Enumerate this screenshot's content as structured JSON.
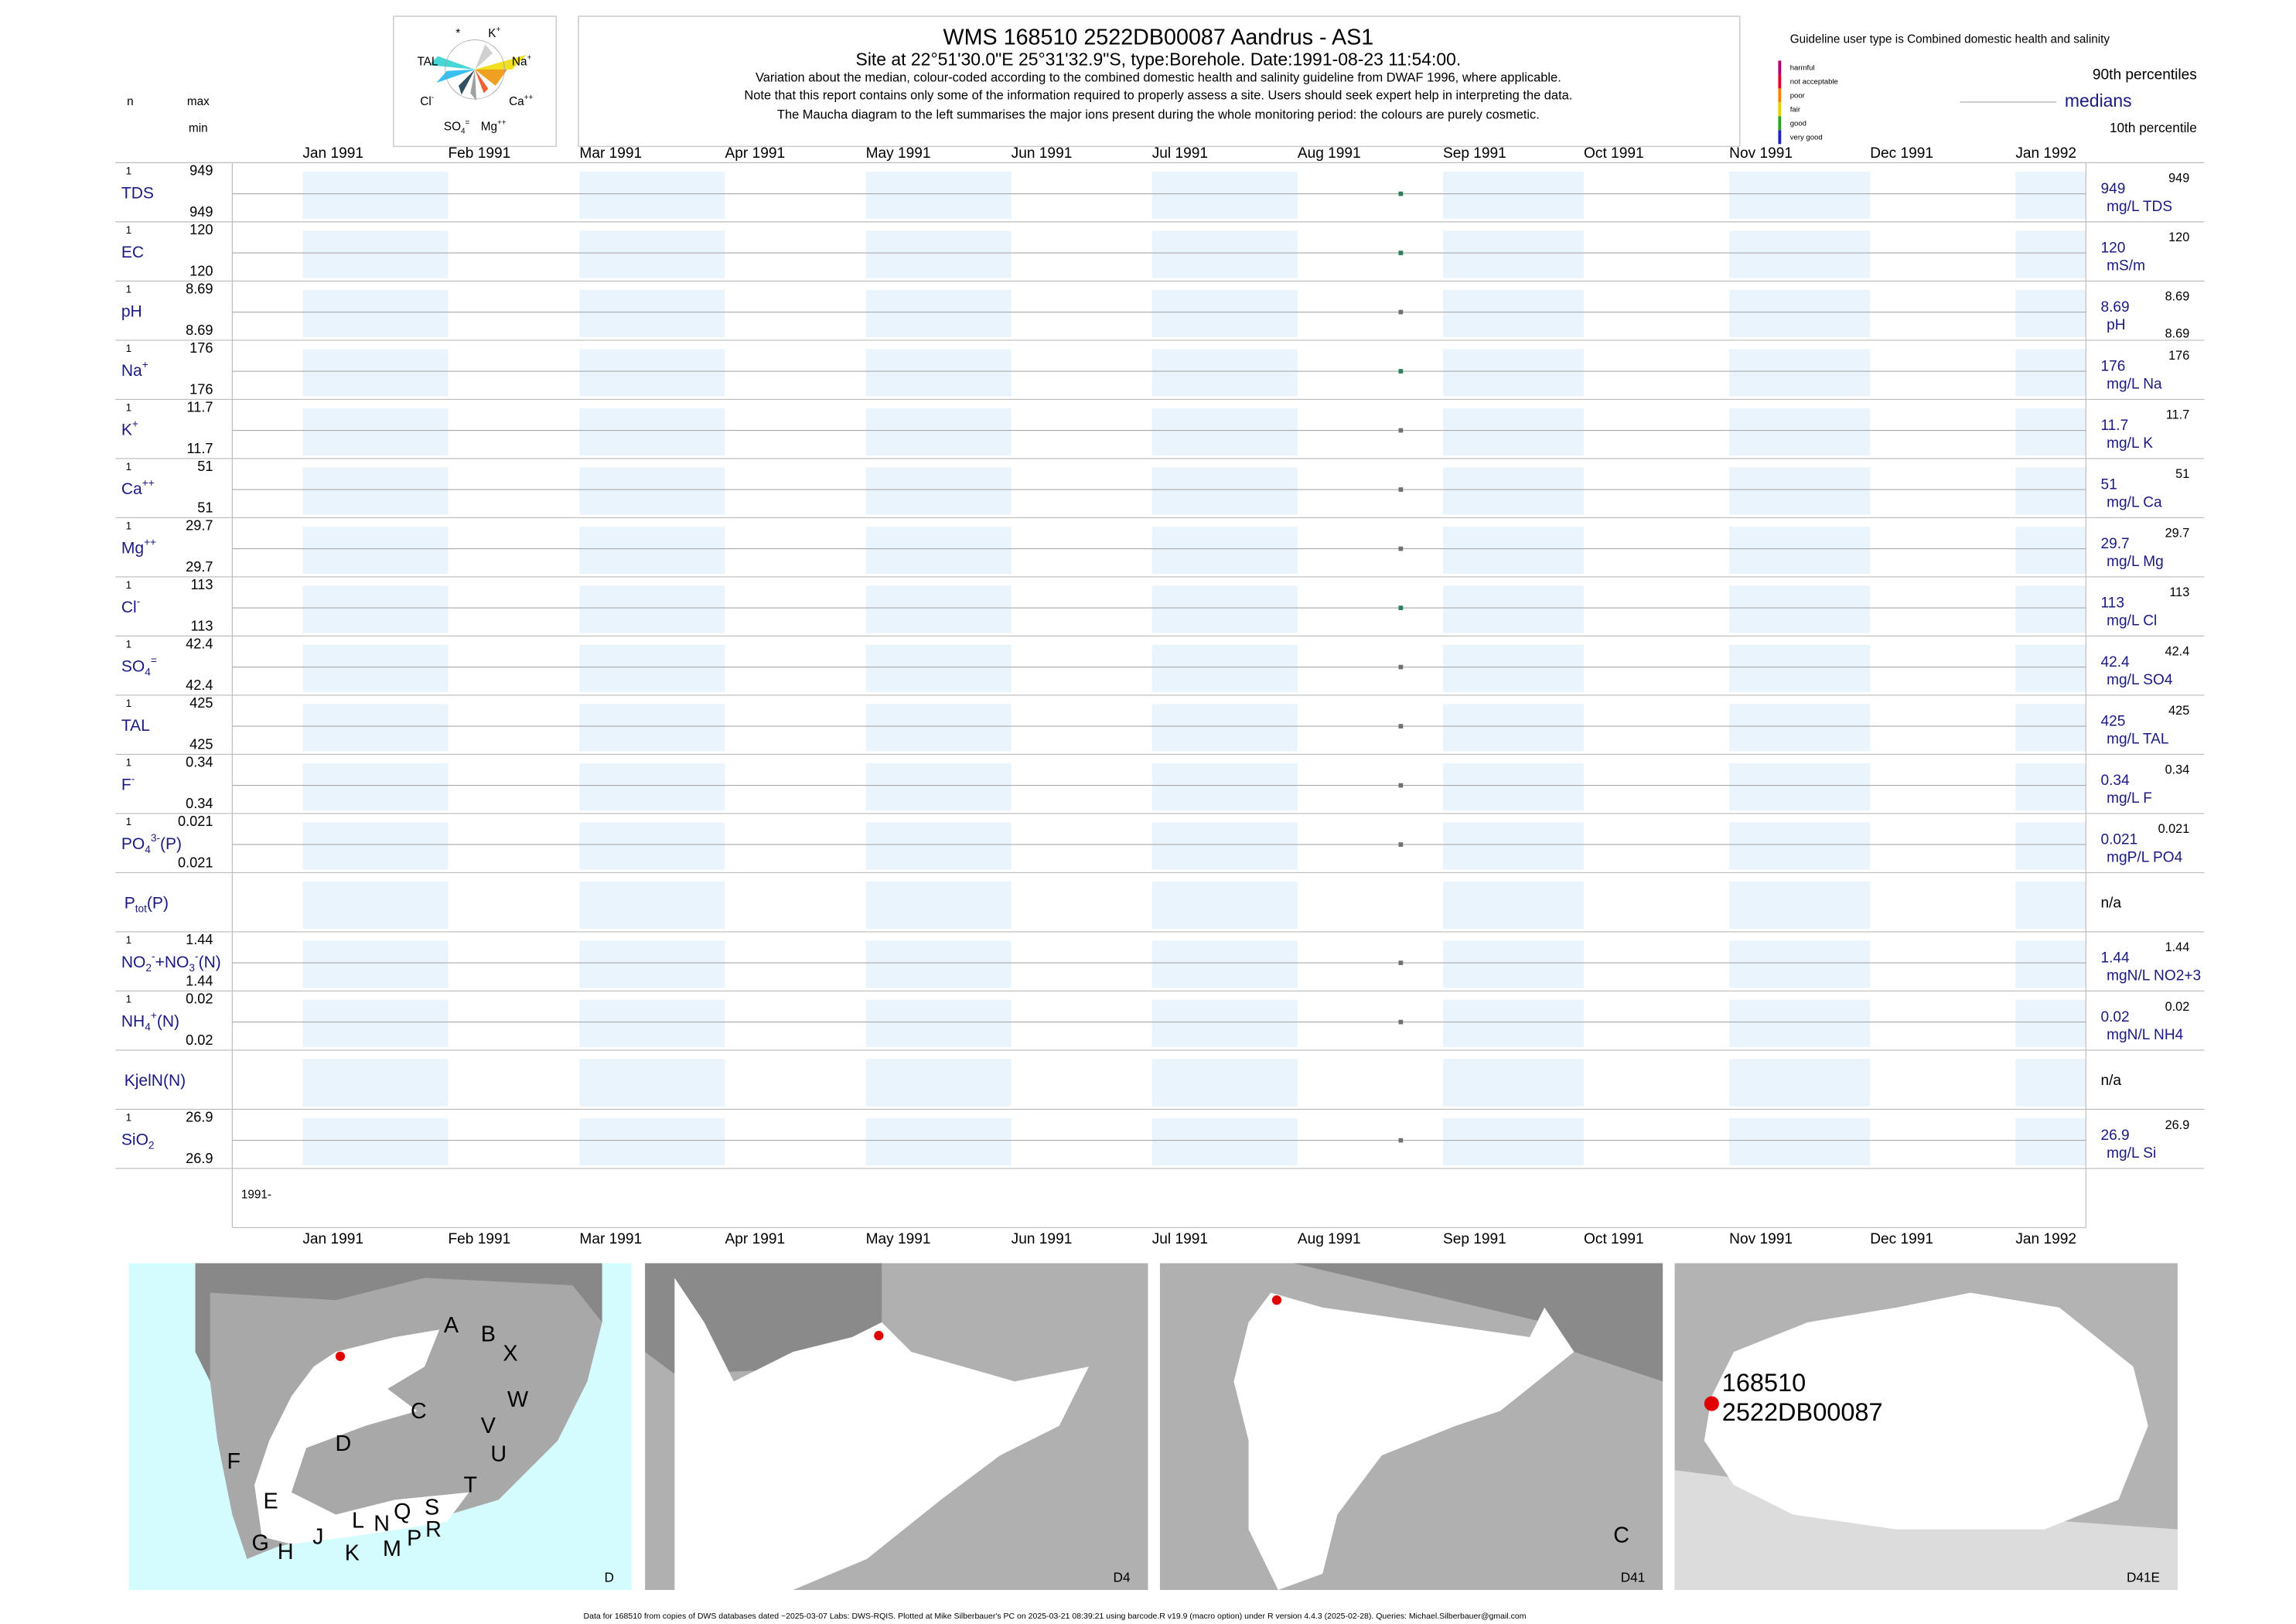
{
  "header": {
    "title": "WMS 168510 2522DB00087 Aandrus - AS1",
    "subtitle": "Site at 22°51'30.0\"E 25°31'32.9\"S, type:Borehole. Date:1991-08-23 11:54:00.",
    "notes": [
      "Variation about the median,  colour-coded according to the combined domestic health and salinity guideline from DWAF 1996, where applicable.",
      "Note that this report contains only some of the information required to properly assess a site. Users should seek expert help in interpreting the data.",
      "The Maucha diagram to the left summarises the major ions present during the whole monitoring period: the colours are purely cosmetic."
    ],
    "column_labels": {
      "n": "n",
      "max": "max",
      "min": "min"
    },
    "guideline": "Guideline user type is Combined domestic health and salinity",
    "classes": [
      {
        "label": "harmful",
        "color": "#b0006e"
      },
      {
        "label": "not acceptable",
        "color": "#e0002a"
      },
      {
        "label": "poor",
        "color": "#ff7f00"
      },
      {
        "label": "fair",
        "color": "#e8d000"
      },
      {
        "label": "good",
        "color": "#2aa02a"
      },
      {
        "label": "very good",
        "color": "#2020c0"
      }
    ],
    "percentile_labels": {
      "p90": "90th percentiles",
      "median": "medians",
      "p10": "10th percentile"
    }
  },
  "maucha": [
    [
      {
        "text": "*"
      }
    ],
    [
      {
        "text": "K"
      },
      {
        "text": "+",
        "pos": "sup"
      }
    ],
    [
      {
        "text": "TAL"
      }
    ],
    [
      {
        "text": "Na"
      },
      {
        "text": "+",
        "pos": "sup"
      }
    ],
    [
      {
        "text": "Cl"
      },
      {
        "text": "-",
        "pos": "sup"
      }
    ],
    [
      {
        "text": "Ca"
      },
      {
        "text": "++",
        "pos": "sup"
      }
    ],
    [
      {
        "text": "SO"
      },
      {
        "text": "4",
        "pos": "sub"
      },
      {
        "text": "=",
        "pos": "sup"
      }
    ],
    [
      {
        "text": "Mg"
      },
      {
        "text": "++",
        "pos": "sup"
      }
    ]
  ],
  "sample_date": "1991-08-23",
  "xlim": [
    "1990-12-17",
    "1992-01-16"
  ],
  "months": [
    {
      "value": "1991-01",
      "label": "Jan 1991"
    },
    {
      "value": "1991-02",
      "label": "Feb 1991"
    },
    {
      "value": "1991-03",
      "label": "Mar 1991"
    },
    {
      "value": "1991-04",
      "label": "Apr 1991"
    },
    {
      "value": "1991-05",
      "label": "May 1991"
    },
    {
      "value": "1991-06",
      "label": "Jun 1991"
    },
    {
      "value": "1991-07",
      "label": "Jul 1991"
    },
    {
      "value": "1991-08",
      "label": "Aug 1991"
    },
    {
      "value": "1991-09",
      "label": "Sep 1991"
    },
    {
      "value": "1991-10",
      "label": "Oct 1991"
    },
    {
      "value": "1991-11",
      "label": "Nov 1991"
    },
    {
      "value": "1991-12",
      "label": "Dec 1991"
    },
    {
      "value": "1992-01",
      "label": "Jan 1992"
    }
  ],
  "year_label": "1991-",
  "panels": [
    {
      "name": [
        {
          "text": "TDS"
        }
      ],
      "n": 1,
      "max": 949,
      "min": 949,
      "median": 949,
      "p90": 949,
      "unit": "mg/L TDS",
      "color": "#2e7d5b"
    },
    {
      "name": [
        {
          "text": "EC"
        }
      ],
      "n": 1,
      "max": 120,
      "min": 120,
      "median": 120,
      "p90": 120,
      "unit": "mS/m",
      "color": "#2e7d5b"
    },
    {
      "name": [
        {
          "text": "pH"
        }
      ],
      "n": 1,
      "max": 8.69,
      "min": 8.69,
      "median": 8.69,
      "p90": 8.69,
      "p10": 8.69,
      "unit": "pH",
      "color": "#707070"
    },
    {
      "name": [
        {
          "text": "Na"
        },
        {
          "text": "+",
          "pos": "sup"
        }
      ],
      "n": 1,
      "max": 176,
      "min": 176,
      "median": 176,
      "p90": 176,
      "unit": "mg/L Na",
      "color": "#2e7d5b"
    },
    {
      "name": [
        {
          "text": "K"
        },
        {
          "text": "+",
          "pos": "sup"
        }
      ],
      "n": 1,
      "max": 11.7,
      "min": 11.7,
      "median": 11.7,
      "p90": 11.7,
      "unit": "mg/L K",
      "color": "#707070"
    },
    {
      "name": [
        {
          "text": "Ca"
        },
        {
          "text": "++",
          "pos": "sup"
        }
      ],
      "n": 1,
      "max": 51,
      "min": 51,
      "median": 51,
      "p90": 51,
      "unit": "mg/L Ca",
      "color": "#707070"
    },
    {
      "name": [
        {
          "text": "Mg"
        },
        {
          "text": "++",
          "pos": "sup"
        }
      ],
      "n": 1,
      "max": 29.7,
      "min": 29.7,
      "median": 29.7,
      "p90": 29.7,
      "unit": "mg/L Mg",
      "color": "#707070"
    },
    {
      "name": [
        {
          "text": "Cl"
        },
        {
          "text": "-",
          "pos": "sup"
        }
      ],
      "n": 1,
      "max": 113,
      "min": 113,
      "median": 113,
      "p90": 113,
      "unit": "mg/L Cl",
      "color": "#2e7d5b"
    },
    {
      "name": [
        {
          "text": "SO"
        },
        {
          "text": "4",
          "pos": "sub"
        },
        {
          "text": "=",
          "pos": "sup"
        }
      ],
      "n": 1,
      "max": 42.4,
      "min": 42.4,
      "median": 42.4,
      "p90": 42.4,
      "unit": "mg/L SO4",
      "color": "#707070"
    },
    {
      "name": [
        {
          "text": "TAL"
        }
      ],
      "n": 1,
      "max": 425,
      "min": 425,
      "median": 425,
      "p90": 425,
      "unit": "mg/L TAL",
      "color": "#707070"
    },
    {
      "name": [
        {
          "text": "F"
        },
        {
          "text": "-",
          "pos": "sup"
        }
      ],
      "n": 1,
      "max": 0.34,
      "min": 0.34,
      "median": 0.34,
      "p90": 0.34,
      "unit": "mg/L F",
      "color": "#707070"
    },
    {
      "name": [
        {
          "text": "PO"
        },
        {
          "text": "4",
          "pos": "sub"
        },
        {
          "text": "3-",
          "pos": "sup"
        },
        {
          "text": "(P)"
        }
      ],
      "n": 1,
      "max": 0.021,
      "min": 0.021,
      "median": 0.021,
      "p90": 0.021,
      "unit": "mgP/L PO4",
      "color": "#707070"
    },
    {
      "name": [
        {
          "text": "P"
        },
        {
          "text": "tot",
          "pos": "sub"
        },
        {
          "text": "(P)"
        }
      ],
      "status": "n/a"
    },
    {
      "name": [
        {
          "text": "NO"
        },
        {
          "text": "2",
          "pos": "sub"
        },
        {
          "text": "-",
          "pos": "sup"
        },
        {
          "text": "+NO"
        },
        {
          "text": "3",
          "pos": "sub"
        },
        {
          "text": "-",
          "pos": "sup"
        },
        {
          "text": "(N)"
        }
      ],
      "n": 1,
      "max": 1.44,
      "min": 1.44,
      "median": 1.44,
      "p90": 1.44,
      "unit": "mgN/L NO2+3",
      "color": "#707070"
    },
    {
      "name": [
        {
          "text": "NH"
        },
        {
          "text": "4",
          "pos": "sub"
        },
        {
          "text": "+",
          "pos": "sup"
        },
        {
          "text": "(N)"
        }
      ],
      "n": 1,
      "max": 0.02,
      "min": 0.02,
      "median": 0.02,
      "p90": 0.02,
      "unit": "mgN/L NH4",
      "color": "#707070"
    },
    {
      "name": [
        {
          "text": "KjelN(N)"
        }
      ],
      "status": "n/a"
    },
    {
      "name": [
        {
          "text": "SiO"
        },
        {
          "text": "2",
          "pos": "sub"
        }
      ],
      "n": 1,
      "max": 26.9,
      "min": 26.9,
      "median": 26.9,
      "p90": 26.9,
      "unit": "mg/L Si",
      "color": "#707070"
    }
  ],
  "maps": [
    {
      "label": "D",
      "labels": [
        "A",
        "B",
        "X",
        "C",
        "W",
        "D",
        "V",
        "U",
        "F",
        "T",
        "E",
        "S",
        "R",
        "G",
        "H",
        "J",
        "K",
        "L",
        "N",
        "Q",
        "M",
        "P"
      ]
    },
    {
      "label": "D4",
      "labels": []
    },
    {
      "label": "D41",
      "labels": [
        "C"
      ]
    },
    {
      "label": "D41E",
      "labels": [
        "168510",
        "2522DB00087"
      ]
    }
  ],
  "footer": "Data for 168510 from copies of DWS databases dated ~2025-03-07 Labs: DWS-RQIS. Plotted at Mike Silberbauer's PC on 2025-03-21 08:39:21 using barcode.R v19.9 (macro option) under R version 4.4.3 (2025-02-28). Queries: Michael.Silberbauer@gmail.com"
}
